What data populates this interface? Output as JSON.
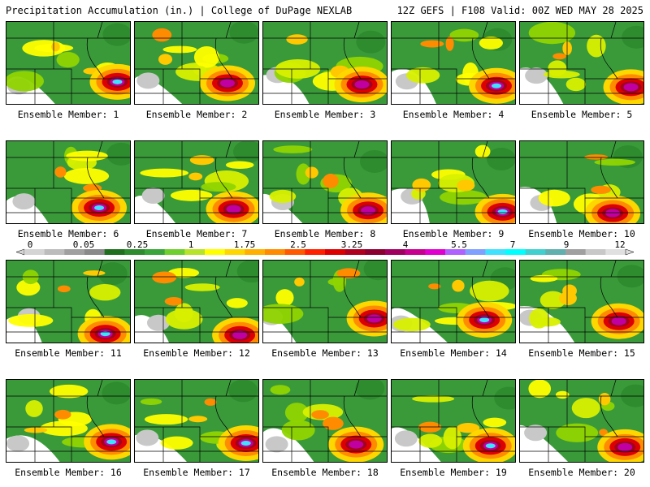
{
  "header": {
    "title_left": "Precipitation Accumulation (in.) | College of DuPage NEXLAB",
    "title_right": "12Z GEFS | F108 Valid: 00Z WED MAY 28 2025"
  },
  "colorbar": {
    "labels": [
      "0",
      "0.05",
      "0.25",
      "1",
      "1.75",
      "2.5",
      "3.25",
      "4",
      "5.5",
      "7",
      "9",
      "12"
    ],
    "colors": [
      "#d4d4d4",
      "#bcbcbc",
      "#a0a0a0",
      "#8a8a8a",
      "#1f6f1f",
      "#2e8b2e",
      "#3aa53a",
      "#6fcf2f",
      "#b7e32a",
      "#ffff00",
      "#ffd700",
      "#ffb000",
      "#ff8c00",
      "#ff5a00",
      "#ff2000",
      "#dd0000",
      "#b00020",
      "#8b0030",
      "#a00060",
      "#c80090",
      "#e000d0",
      "#b060ff",
      "#7fa0ff",
      "#40e0ff",
      "#00ffff",
      "#40d0d0",
      "#60b0b0",
      "#a0a0a0",
      "#c8c8c8",
      "#e0e0e0"
    ]
  },
  "members": [
    {
      "label": "Ensemble Member: 1"
    },
    {
      "label": "Ensemble Member: 2"
    },
    {
      "label": "Ensemble Member: 3"
    },
    {
      "label": "Ensemble Member: 4"
    },
    {
      "label": "Ensemble Member: 5"
    },
    {
      "label": "Ensemble Member: 6"
    },
    {
      "label": "Ensemble Member: 7"
    },
    {
      "label": "Ensemble Member: 8"
    },
    {
      "label": "Ensemble Member: 9"
    },
    {
      "label": "Ensemble Member: 10"
    },
    {
      "label": "Ensemble Member: 11"
    },
    {
      "label": "Ensemble Member: 12"
    },
    {
      "label": "Ensemble Member: 13"
    },
    {
      "label": "Ensemble Member: 14"
    },
    {
      "label": "Ensemble Member: 15"
    },
    {
      "label": "Ensemble Member: 16"
    },
    {
      "label": "Ensemble Member: 17"
    },
    {
      "label": "Ensemble Member: 18"
    },
    {
      "label": "Ensemble Member: 19"
    },
    {
      "label": "Ensemble Member: 20"
    }
  ]
}
